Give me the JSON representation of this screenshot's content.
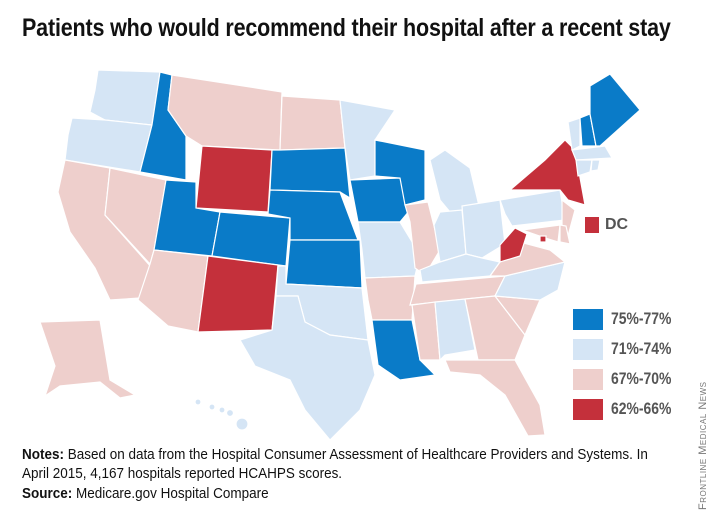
{
  "title": "Patients who would recommend their hospital after a recent stay",
  "legend": [
    {
      "key": "75-77",
      "label": "75%-77%",
      "color": "#0a7bc8"
    },
    {
      "key": "71-74",
      "label": "71%-74%",
      "color": "#d5e5f5"
    },
    {
      "key": "67-70",
      "label": "67%-70%",
      "color": "#eecfcc"
    },
    {
      "key": "62-66",
      "label": "62%-66%",
      "color": "#c4303b"
    }
  ],
  "dc": {
    "label": "DC",
    "category": "62-66"
  },
  "states": {
    "WA": "71-74",
    "OR": "71-74",
    "CA": "67-70",
    "NV": "67-70",
    "ID": "75-77",
    "MT": "67-70",
    "WY": "62-66",
    "UT": "75-77",
    "CO": "75-77",
    "AZ": "67-70",
    "NM": "62-66",
    "ND": "67-70",
    "SD": "75-77",
    "NE": "75-77",
    "KS": "75-77",
    "OK": "71-74",
    "TX": "71-74",
    "MN": "71-74",
    "IA": "75-77",
    "WI": "75-77",
    "MO": "71-74",
    "AR": "67-70",
    "LA": "75-77",
    "IL": "67-70",
    "MI": "71-74",
    "IN": "71-74",
    "OH": "71-74",
    "KY": "71-74",
    "TN": "67-70",
    "MS": "67-70",
    "AL": "71-74",
    "GA": "67-70",
    "FL": "67-70",
    "SC": "67-70",
    "NC": "71-74",
    "VA": "67-70",
    "WV": "62-66",
    "PA": "71-74",
    "NY": "62-66",
    "NJ": "67-70",
    "MD": "67-70",
    "DE": "67-70",
    "VT": "71-74",
    "NH": "75-77",
    "ME": "75-77",
    "MA": "71-74",
    "CT": "71-74",
    "RI": "71-74",
    "AK": "67-70",
    "HI": "71-74"
  },
  "notes": {
    "label": "Notes:",
    "text": " Based on data from the Hospital Consumer Assessment of Healthcare Providers and Systems. In April 2015, 4,167 hospitals reported HCAHPS scores."
  },
  "source": {
    "label": "Source:",
    "text": " Medicare.gov Hospital Compare"
  },
  "credit": "Frontline Medical News"
}
